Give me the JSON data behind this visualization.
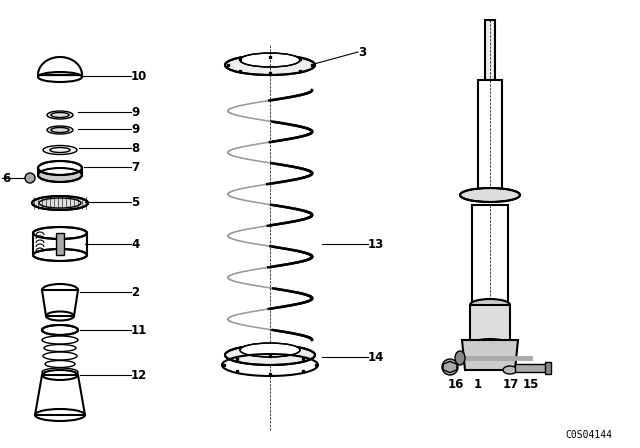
{
  "background_color": "#ffffff",
  "line_color": "#000000",
  "diagram_code": "C0S04144",
  "fig_width": 6.4,
  "fig_height": 4.48,
  "dpi": 100
}
